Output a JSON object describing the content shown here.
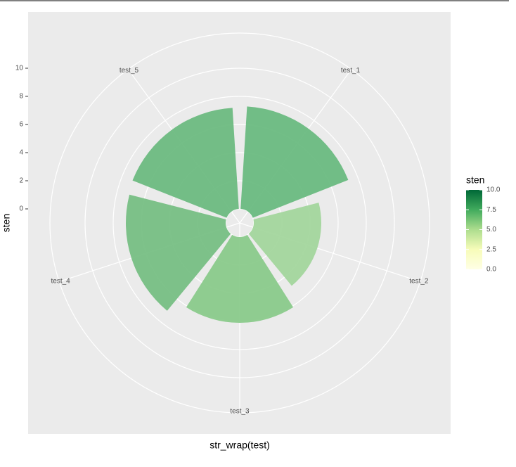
{
  "chart_data": {
    "type": "polar_bar",
    "categories": [
      "test_1",
      "test_2",
      "test_3",
      "test_4",
      "test_5"
    ],
    "values": [
      7.3,
      4.8,
      6.1,
      7.1,
      7.2
    ],
    "colors": [
      "#6aba81",
      "#a3d69d",
      "#8aca8b",
      "#77bf84",
      "#6dbb81"
    ],
    "x_label": "str_wrap(test)",
    "y_label": "sten",
    "ylim": [
      -1,
      12.5
    ],
    "yticks": [
      0,
      2,
      4,
      6,
      8,
      10
    ],
    "grid": true,
    "legend": {
      "title": "sten",
      "lim": [
        0,
        10
      ],
      "colorscale": [
        "#ffffe5",
        "#f7fcb9",
        "#addd8e",
        "#41ab5d",
        "#006837"
      ],
      "ticks": [
        {
          "value": 0,
          "label": "0.0"
        },
        {
          "value": 2.5,
          "label": "2.5"
        },
        {
          "value": 5,
          "label": "5.0"
        },
        {
          "value": 7.5,
          "label": "7.5"
        },
        {
          "value": 10,
          "label": "10.0"
        }
      ]
    }
  }
}
